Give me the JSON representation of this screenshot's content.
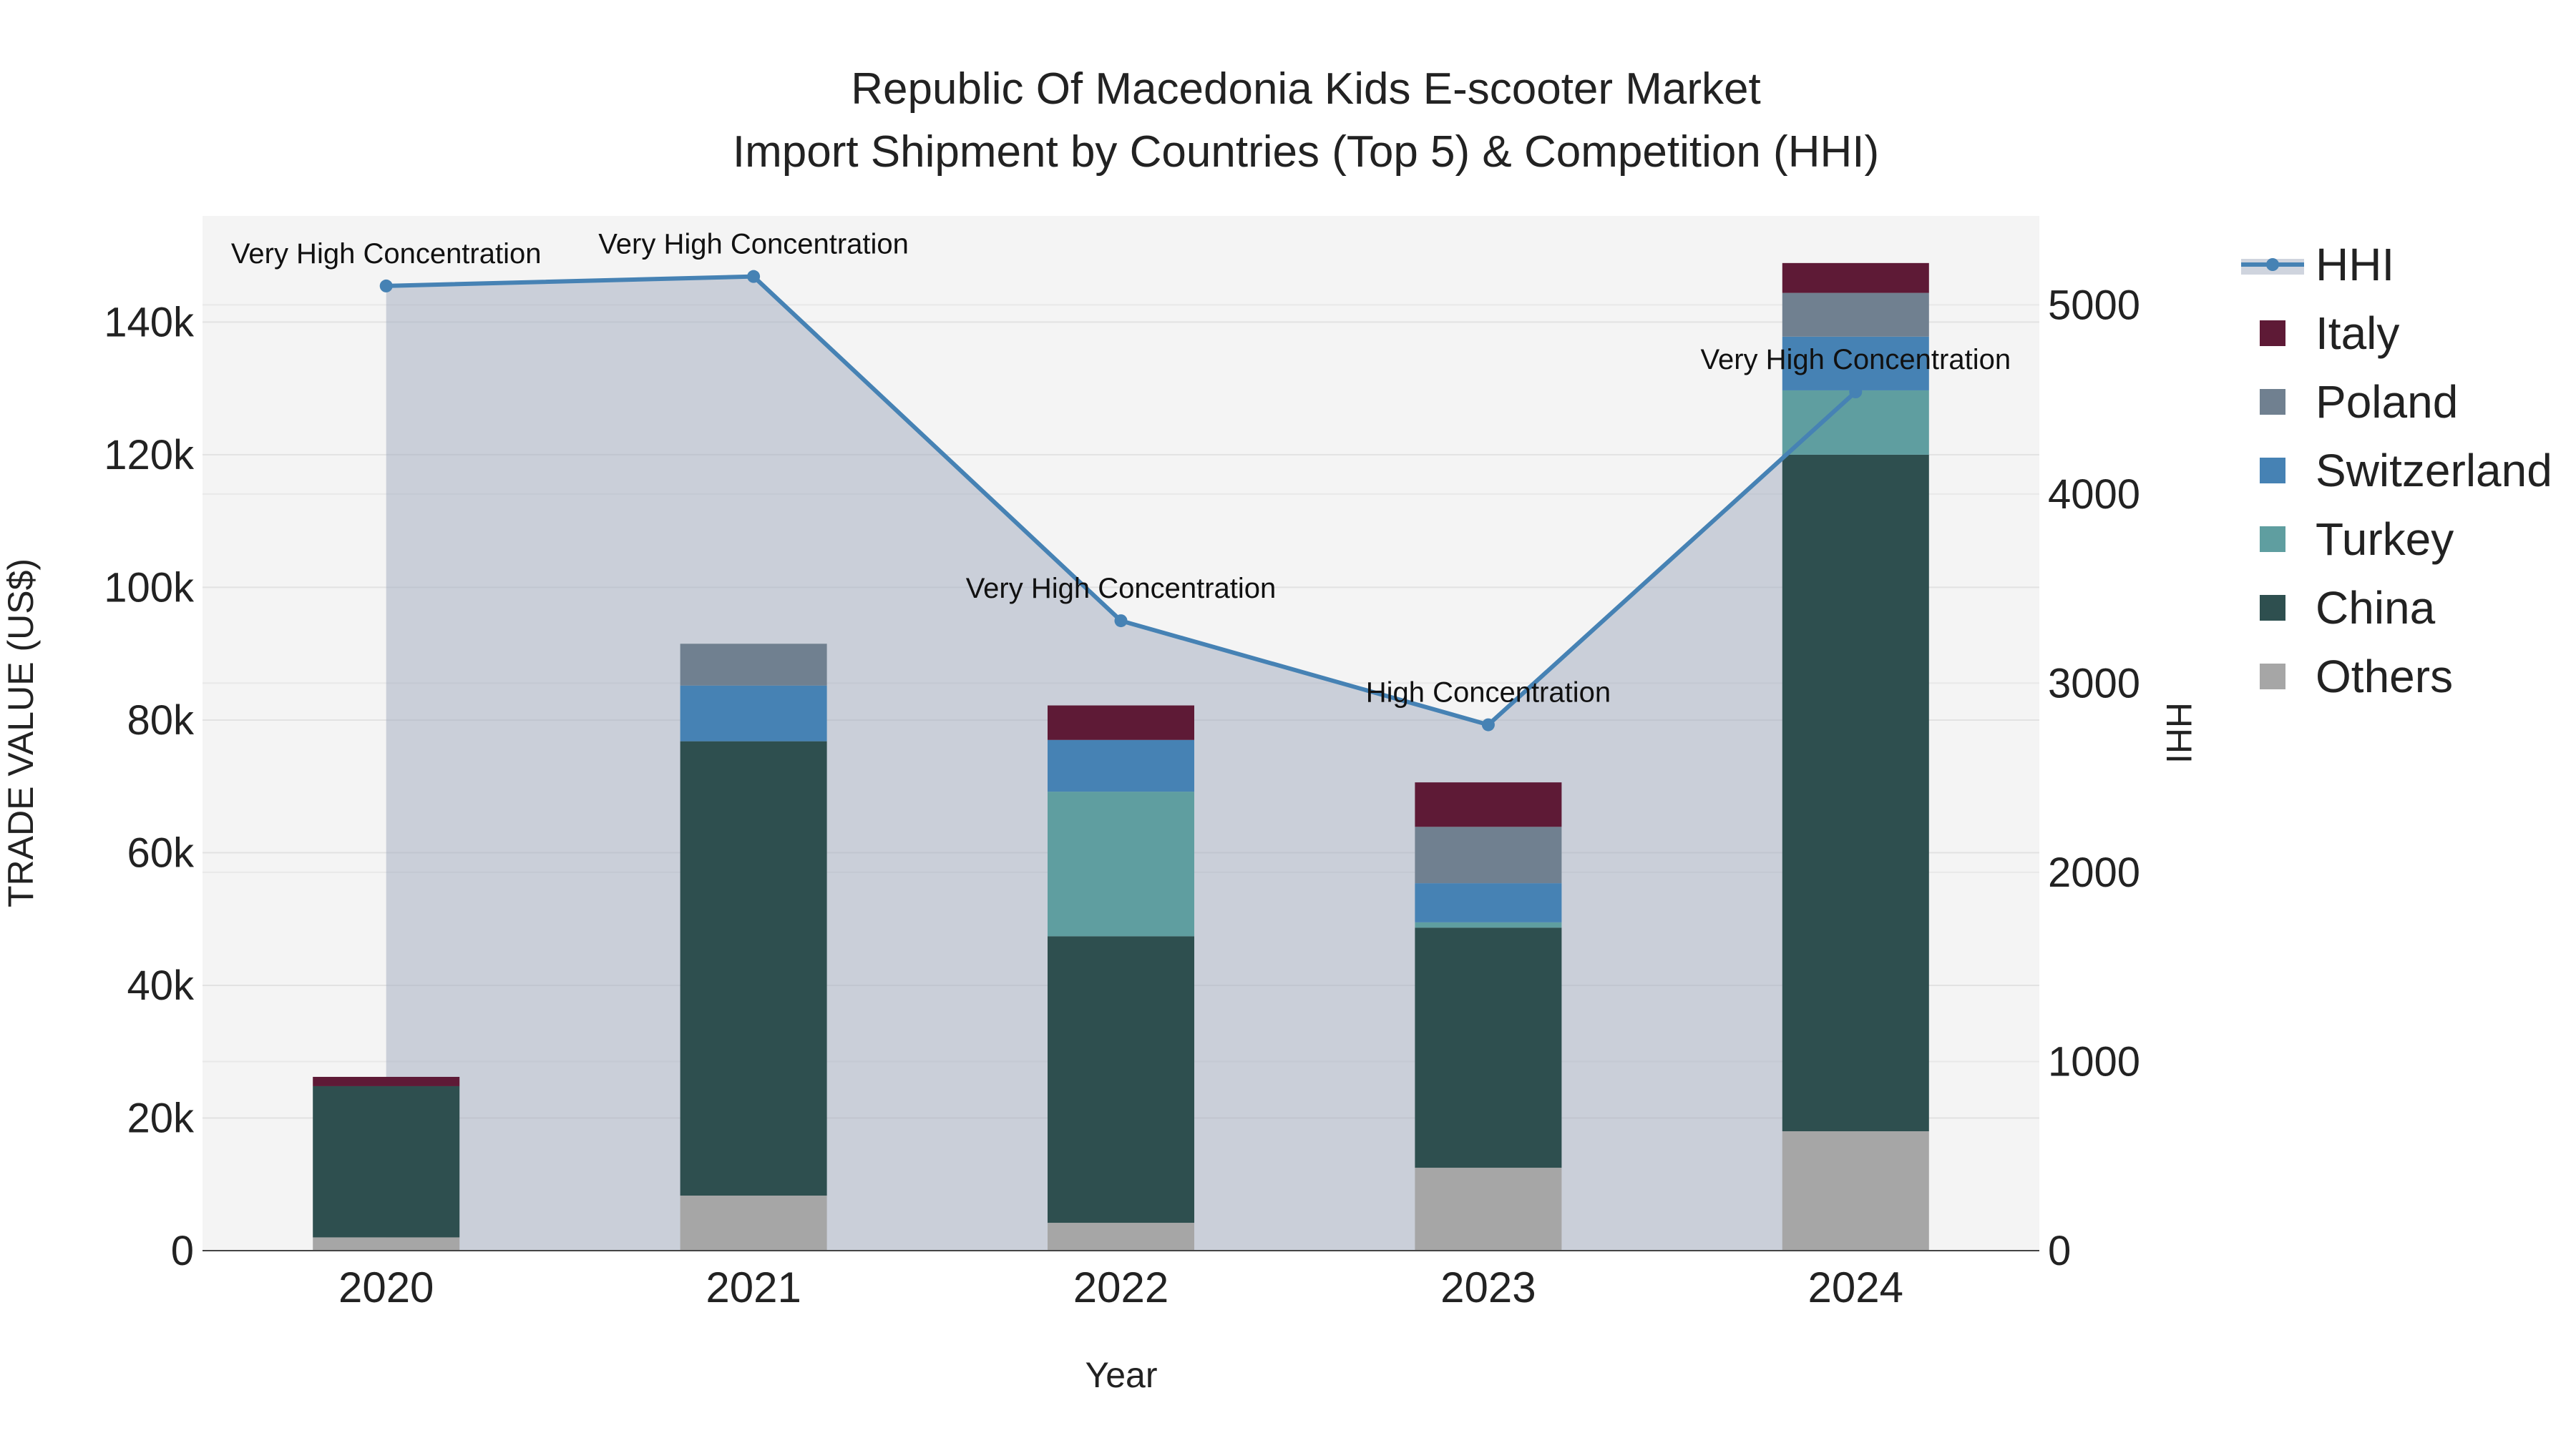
{
  "chart_data": {
    "type": "bar",
    "title_line1": "Republic Of Macedonia Kids E-scooter Market",
    "title_line2": "Import Shipment by Countries (Top 5) & Competition (HHI)",
    "xlabel": "Year",
    "ylabel": "TRADE VALUE (US$)",
    "y2label": "HHI",
    "categories": [
      "2020",
      "2021",
      "2022",
      "2023",
      "2024"
    ],
    "ylim": [
      0,
      156000
    ],
    "y_ticks": [
      0,
      20000,
      40000,
      60000,
      80000,
      100000,
      120000,
      140000
    ],
    "y_tick_labels": [
      "0",
      "20k",
      "40k",
      "60k",
      "80k",
      "100k",
      "120k",
      "140k"
    ],
    "y2lim": [
      0,
      5470
    ],
    "y2_ticks": [
      0,
      1000,
      2000,
      3000,
      4000,
      5000
    ],
    "y2_tick_labels": [
      "0",
      "1000",
      "2000",
      "3000",
      "4000",
      "5000"
    ],
    "series": [
      {
        "name": "Others",
        "color": "#a6a6a6",
        "values": [
          2000,
          8300,
          4200,
          12500,
          18000
        ]
      },
      {
        "name": "China",
        "color": "#2e4f4f",
        "values": [
          22800,
          68500,
          43200,
          36200,
          102000
        ]
      },
      {
        "name": "Turkey",
        "color": "#5f9ea0",
        "values": [
          0,
          0,
          21800,
          800,
          9700
        ]
      },
      {
        "name": "Switzerland",
        "color": "#4682b4",
        "values": [
          0,
          8400,
          7800,
          5900,
          8100
        ]
      },
      {
        "name": "Poland",
        "color": "#708090",
        "values": [
          0,
          6300,
          0,
          8500,
          6600
        ]
      },
      {
        "name": "Italy",
        "color": "#5e1a36",
        "values": [
          1400,
          0,
          5200,
          6700,
          4500
        ]
      }
    ],
    "hhi": {
      "name": "HHI",
      "color": "#4682b4",
      "values": [
        5100,
        5150,
        3330,
        2780,
        4540
      ],
      "labels": [
        "Very High Concentration",
        "Very High Concentration",
        "Very High Concentration",
        "High Concentration",
        "Very High Concentration"
      ]
    },
    "legend": [
      "HHI",
      "Italy",
      "Poland",
      "Switzerland",
      "Turkey",
      "China",
      "Others"
    ],
    "legend_position": "right"
  }
}
